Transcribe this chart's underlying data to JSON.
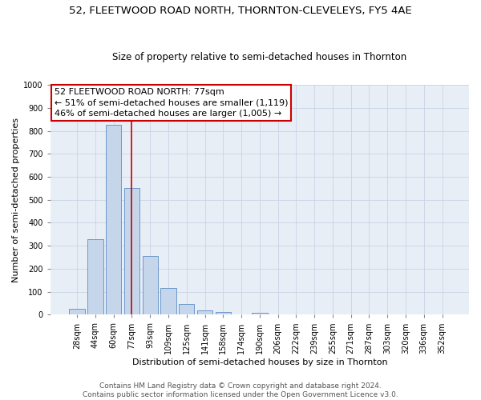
{
  "title": "52, FLEETWOOD ROAD NORTH, THORNTON-CLEVELEYS, FY5 4AE",
  "subtitle": "Size of property relative to semi-detached houses in Thornton",
  "xlabel": "Distribution of semi-detached houses by size in Thornton",
  "ylabel": "Number of semi-detached properties",
  "footer_line1": "Contains HM Land Registry data © Crown copyright and database right 2024.",
  "footer_line2": "Contains public sector information licensed under the Open Government Licence v3.0.",
  "annotation_line1": "52 FLEETWOOD ROAD NORTH: 77sqm",
  "annotation_line2": "← 51% of semi-detached houses are smaller (1,119)",
  "annotation_line3": "46% of semi-detached houses are larger (1,005) →",
  "categories": [
    "28sqm",
    "44sqm",
    "60sqm",
    "77sqm",
    "93sqm",
    "109sqm",
    "125sqm",
    "141sqm",
    "158sqm",
    "174sqm",
    "190sqm",
    "206sqm",
    "222sqm",
    "239sqm",
    "255sqm",
    "271sqm",
    "287sqm",
    "303sqm",
    "320sqm",
    "336sqm",
    "352sqm"
  ],
  "values": [
    25,
    330,
    825,
    550,
    255,
    115,
    45,
    20,
    13,
    0,
    8,
    0,
    0,
    0,
    0,
    0,
    0,
    0,
    0,
    0,
    0
  ],
  "bar_color": "#c5d6ea",
  "bar_edge_color": "#5b8bc5",
  "highlight_bar_index": 3,
  "vline_color": "#cc0000",
  "vline_x": 3,
  "annotation_box_facecolor": "#ffffff",
  "annotation_box_edgecolor": "#cc0000",
  "ylim": [
    0,
    1000
  ],
  "yticks": [
    0,
    100,
    200,
    300,
    400,
    500,
    600,
    700,
    800,
    900,
    1000
  ],
  "grid_color": "#c8d4e5",
  "bg_color": "#e8eef6",
  "title_fontsize": 9.5,
  "subtitle_fontsize": 8.5,
  "axis_label_fontsize": 8,
  "tick_fontsize": 7,
  "annotation_fontsize": 8,
  "footer_fontsize": 6.5
}
